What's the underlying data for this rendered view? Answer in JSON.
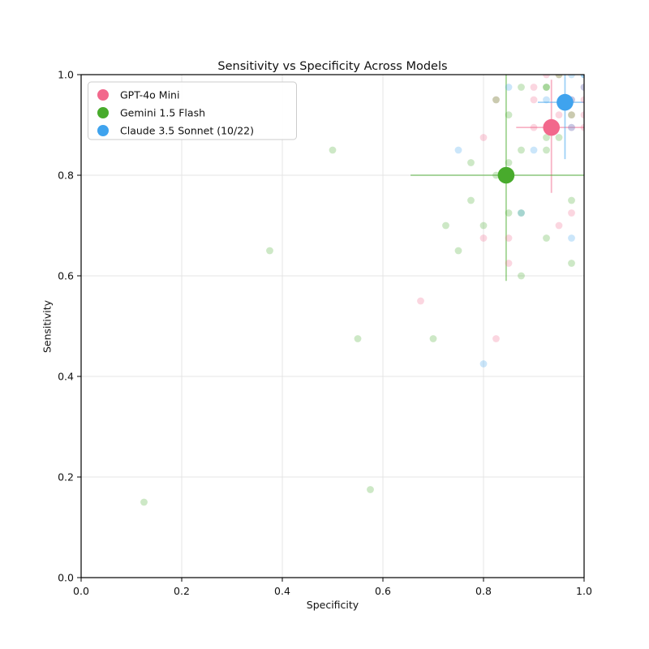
{
  "chart_data": {
    "type": "scatter",
    "title": "Sensitivity vs Specificity Across Models",
    "xlabel": "Specificity",
    "ylabel": "Sensitivity",
    "xlim": [
      0.0,
      1.0
    ],
    "ylim": [
      0.0,
      1.0
    ],
    "x_tick_labels": [
      "0.0",
      "0.2",
      "0.4",
      "0.6",
      "0.8",
      "1.0"
    ],
    "y_tick_labels": [
      "0.0",
      "0.2",
      "0.4",
      "0.6",
      "0.8",
      "1.0"
    ],
    "grid": true,
    "legend_position": "upper left",
    "series": [
      {
        "name": "GPT-4o Mini",
        "color": "#f2688c",
        "mean": {
          "x": 0.935,
          "y": 0.895,
          "xerr": [
            0.865,
            1.0
          ],
          "yerr": [
            0.765,
            0.99
          ]
        },
        "points": [
          [
            0.675,
            0.55
          ],
          [
            0.825,
            0.475
          ],
          [
            0.8,
            0.875
          ],
          [
            0.8,
            0.675
          ],
          [
            0.85,
            0.675
          ],
          [
            0.95,
            0.7
          ],
          [
            0.85,
            0.625
          ],
          [
            0.975,
            0.725
          ],
          [
            0.925,
            1.0
          ],
          [
            0.95,
            1.0
          ],
          [
            0.9,
            0.975
          ],
          [
            0.9,
            0.95
          ],
          [
            0.975,
            0.95
          ],
          [
            1.0,
            0.95
          ],
          [
            0.95,
            0.92
          ],
          [
            0.975,
            0.92
          ],
          [
            1.0,
            0.92
          ],
          [
            0.9,
            0.895
          ],
          [
            0.975,
            0.895
          ],
          [
            1.0,
            0.895
          ],
          [
            0.825,
            0.95
          ],
          [
            1.0,
            0.975
          ]
        ]
      },
      {
        "name": "Gemini 1.5 Flash",
        "color": "#48ab2c",
        "mean": {
          "x": 0.845,
          "y": 0.8,
          "xerr": [
            0.655,
            1.0
          ],
          "yerr": [
            0.59,
            1.0
          ]
        },
        "points": [
          [
            0.125,
            0.15
          ],
          [
            0.575,
            0.175
          ],
          [
            0.375,
            0.65
          ],
          [
            0.5,
            0.85
          ],
          [
            0.55,
            0.475
          ],
          [
            0.7,
            0.475
          ],
          [
            0.725,
            0.7
          ],
          [
            0.75,
            0.65
          ],
          [
            0.775,
            0.75
          ],
          [
            0.775,
            0.825
          ],
          [
            0.8,
            0.7
          ],
          [
            0.825,
            0.8
          ],
          [
            0.85,
            0.825
          ],
          [
            0.85,
            0.725
          ],
          [
            0.875,
            0.85
          ],
          [
            0.875,
            0.725
          ],
          [
            0.875,
            0.6
          ],
          [
            0.925,
            0.675
          ],
          [
            0.925,
            0.85
          ],
          [
            0.925,
            0.875
          ],
          [
            0.95,
            0.875
          ],
          [
            0.975,
            0.75
          ],
          [
            0.975,
            0.625
          ],
          [
            0.85,
            0.92
          ],
          [
            0.875,
            0.975
          ],
          [
            0.925,
            0.975
          ],
          [
            0.925,
            0.975
          ],
          [
            0.95,
            1.0
          ],
          [
            0.825,
            0.95
          ],
          [
            0.975,
            0.92
          ]
        ]
      },
      {
        "name": "Claude 3.5 Sonnet (10/22)",
        "color": "#3fa3ee",
        "mean": {
          "x": 0.962,
          "y": 0.945,
          "xerr": [
            0.908,
            1.0
          ],
          "yerr": [
            0.832,
            1.0
          ]
        },
        "points": [
          [
            0.8,
            0.425
          ],
          [
            0.75,
            0.85
          ],
          [
            0.9,
            0.85
          ],
          [
            0.975,
            0.675
          ],
          [
            0.875,
            0.725
          ],
          [
            0.85,
            0.975
          ],
          [
            0.925,
            0.95
          ],
          [
            0.975,
            0.95
          ],
          [
            0.975,
            1.0
          ],
          [
            1.0,
            1.0
          ],
          [
            1.0,
            1.0
          ],
          [
            0.975,
            0.895
          ],
          [
            1.0,
            0.975
          ]
        ]
      }
    ]
  }
}
